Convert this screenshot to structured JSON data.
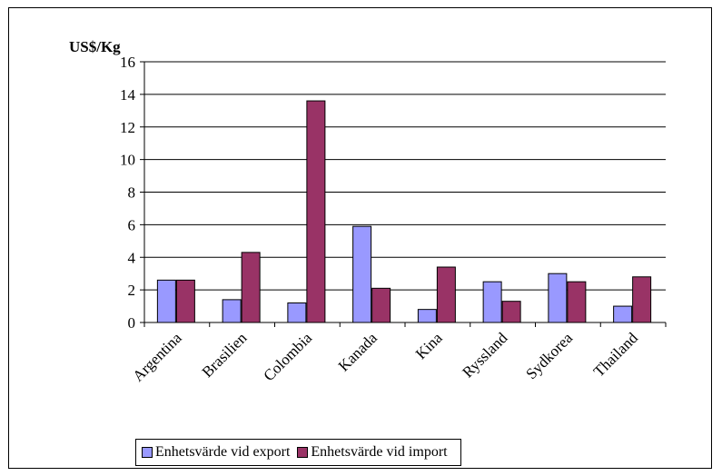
{
  "chart_data": {
    "type": "bar",
    "ylabel": "US$/Kg",
    "ylim": [
      0,
      16
    ],
    "yticks": [
      0,
      2,
      4,
      6,
      8,
      10,
      12,
      14,
      16
    ],
    "grid": true,
    "legend_position": "bottom",
    "categories": [
      "Argentina",
      "Brasilien",
      "Colombia",
      "Kanada",
      "Kina",
      "Ryssland",
      "Sydkorea",
      "Thailand"
    ],
    "series": [
      {
        "name": "Enhetsvärde vid export",
        "color": "#9999ff",
        "values": [
          2.6,
          1.4,
          1.2,
          5.9,
          0.8,
          2.5,
          3.0,
          1.0
        ]
      },
      {
        "name": "Enhetsvärde vid import",
        "color": "#993366",
        "values": [
          2.6,
          4.3,
          13.6,
          2.1,
          3.4,
          1.3,
          2.5,
          2.8
        ]
      }
    ]
  }
}
